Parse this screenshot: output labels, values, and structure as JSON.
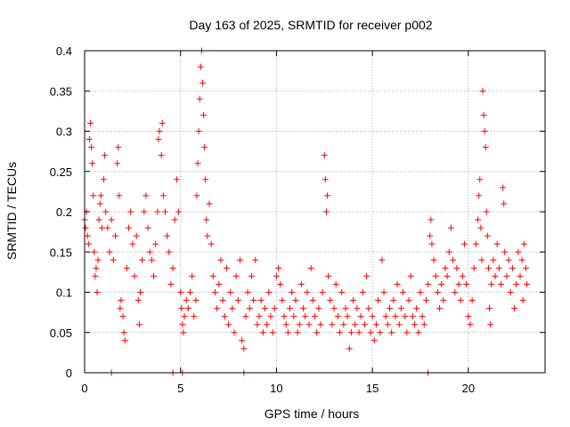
{
  "chart_data": {
    "type": "scatter",
    "title": "Day 163 of 2025, SRMTID for receiver p002",
    "xlabel": "GPS time / hours",
    "ylabel": "SRMTID / TECUs",
    "xlim": [
      0,
      24
    ],
    "ylim": [
      0,
      0.4
    ],
    "xticks": [
      0,
      5,
      10,
      15,
      20
    ],
    "xtick_labels": [
      "0",
      "5",
      "10",
      "15",
      "20"
    ],
    "yticks": [
      0,
      0.05,
      0.1,
      0.15,
      0.2,
      0.25,
      0.3,
      0.35,
      0.4
    ],
    "ytick_labels": [
      "0",
      "0.05",
      "0.1",
      "0.15",
      "0.2",
      "0.25",
      "0.3",
      "0.35",
      "0.4"
    ],
    "grid": true,
    "marker": "+",
    "series": [
      {
        "name": "SRMTID",
        "color": "#ff0000",
        "points": [
          [
            0.0,
            0.19
          ],
          [
            0.05,
            0.18
          ],
          [
            0.1,
            0.2
          ],
          [
            0.15,
            0.17
          ],
          [
            0.2,
            0.16
          ],
          [
            0.25,
            0.29
          ],
          [
            0.3,
            0.31
          ],
          [
            0.35,
            0.28
          ],
          [
            0.4,
            0.26
          ],
          [
            0.45,
            0.22
          ],
          [
            0.5,
            0.15
          ],
          [
            0.55,
            0.12
          ],
          [
            0.6,
            0.13
          ],
          [
            0.65,
            0.1
          ],
          [
            0.7,
            0.14
          ],
          [
            0.75,
            0.19
          ],
          [
            0.8,
            0.21
          ],
          [
            0.85,
            0.22
          ],
          [
            0.9,
            0.18
          ],
          [
            1.0,
            0.24
          ],
          [
            1.05,
            0.27
          ],
          [
            1.1,
            0.2
          ],
          [
            1.2,
            0.18
          ],
          [
            1.3,
            0.15
          ],
          [
            1.4,
            0.19
          ],
          [
            1.5,
            0.14
          ],
          [
            1.6,
            0.17
          ],
          [
            1.7,
            0.26
          ],
          [
            1.75,
            0.28
          ],
          [
            1.8,
            0.22
          ],
          [
            1.85,
            0.08
          ],
          [
            1.9,
            0.09
          ],
          [
            2.0,
            0.07
          ],
          [
            2.05,
            0.05
          ],
          [
            2.1,
            0.04
          ],
          [
            2.2,
            0.13
          ],
          [
            2.3,
            0.18
          ],
          [
            2.4,
            0.2
          ],
          [
            2.5,
            0.16
          ],
          [
            2.6,
            0.12
          ],
          [
            2.7,
            0.17
          ],
          [
            2.8,
            0.09
          ],
          [
            2.85,
            0.06
          ],
          [
            2.9,
            0.1
          ],
          [
            3.0,
            0.14
          ],
          [
            3.1,
            0.2
          ],
          [
            3.2,
            0.22
          ],
          [
            3.3,
            0.18
          ],
          [
            3.4,
            0.15
          ],
          [
            3.5,
            0.14
          ],
          [
            3.6,
            0.12
          ],
          [
            3.7,
            0.16
          ],
          [
            3.8,
            0.2
          ],
          [
            3.85,
            0.29
          ],
          [
            3.9,
            0.3
          ],
          [
            4.0,
            0.27
          ],
          [
            4.05,
            0.31
          ],
          [
            4.1,
            0.22
          ],
          [
            4.2,
            0.2
          ],
          [
            4.3,
            0.17
          ],
          [
            4.4,
            0.15
          ],
          [
            4.5,
            0.11
          ],
          [
            4.6,
            0.13
          ],
          [
            4.7,
            0.19
          ],
          [
            4.8,
            0.24
          ],
          [
            4.9,
            0.2
          ],
          [
            5.0,
            0.1
          ],
          [
            5.05,
            0.08
          ],
          [
            5.1,
            0.06
          ],
          [
            5.15,
            0.05
          ],
          [
            5.2,
            0.07
          ],
          [
            5.3,
            0.09
          ],
          [
            5.4,
            0.08
          ],
          [
            5.5,
            0.1
          ],
          [
            5.6,
            0.12
          ],
          [
            5.7,
            0.07
          ],
          [
            5.8,
            0.09
          ],
          [
            5.85,
            0.22
          ],
          [
            5.9,
            0.26
          ],
          [
            5.95,
            0.3
          ],
          [
            6.0,
            0.34
          ],
          [
            6.05,
            0.38
          ],
          [
            6.1,
            0.4
          ],
          [
            6.15,
            0.36
          ],
          [
            6.2,
            0.32
          ],
          [
            6.25,
            0.28
          ],
          [
            6.3,
            0.24
          ],
          [
            6.35,
            0.19
          ],
          [
            6.4,
            0.17
          ],
          [
            6.5,
            0.21
          ],
          [
            6.6,
            0.16
          ],
          [
            6.7,
            0.12
          ],
          [
            6.8,
            0.1
          ],
          [
            6.9,
            0.08
          ],
          [
            7.0,
            0.11
          ],
          [
            7.1,
            0.14
          ],
          [
            7.2,
            0.09
          ],
          [
            7.3,
            0.07
          ],
          [
            7.4,
            0.13
          ],
          [
            7.5,
            0.06
          ],
          [
            7.6,
            0.1
          ],
          [
            7.7,
            0.08
          ],
          [
            7.8,
            0.05
          ],
          [
            7.9,
            0.12
          ],
          [
            8.0,
            0.09
          ],
          [
            8.1,
            0.14
          ],
          [
            8.2,
            0.04
          ],
          [
            8.3,
            0.03
          ],
          [
            8.4,
            0.07
          ],
          [
            8.5,
            0.1
          ],
          [
            8.6,
            0.08
          ],
          [
            8.7,
            0.12
          ],
          [
            8.8,
            0.09
          ],
          [
            8.9,
            0.14
          ],
          [
            9.0,
            0.06
          ],
          [
            9.1,
            0.07
          ],
          [
            9.2,
            0.09
          ],
          [
            9.3,
            0.05
          ],
          [
            9.4,
            0.08
          ],
          [
            9.5,
            0.06
          ],
          [
            9.6,
            0.1
          ],
          [
            9.7,
            0.07
          ],
          [
            9.8,
            0.05
          ],
          [
            9.9,
            0.08
          ],
          [
            10.0,
            0.12
          ],
          [
            10.1,
            0.13
          ],
          [
            10.2,
            0.11
          ],
          [
            10.3,
            0.09
          ],
          [
            10.4,
            0.07
          ],
          [
            10.5,
            0.06
          ],
          [
            10.6,
            0.05
          ],
          [
            10.7,
            0.08
          ],
          [
            10.8,
            0.1
          ],
          [
            10.9,
            0.07
          ],
          [
            11.0,
            0.09
          ],
          [
            11.1,
            0.05
          ],
          [
            11.2,
            0.06
          ],
          [
            11.3,
            0.11
          ],
          [
            11.4,
            0.08
          ],
          [
            11.5,
            0.07
          ],
          [
            11.6,
            0.1
          ],
          [
            11.7,
            0.06
          ],
          [
            11.8,
            0.13
          ],
          [
            11.9,
            0.09
          ],
          [
            12.0,
            0.07
          ],
          [
            12.1,
            0.05
          ],
          [
            12.2,
            0.08
          ],
          [
            12.3,
            0.06
          ],
          [
            12.4,
            0.1
          ],
          [
            12.5,
            0.27
          ],
          [
            12.55,
            0.24
          ],
          [
            12.6,
            0.2
          ],
          [
            12.65,
            0.22
          ],
          [
            12.7,
            0.12
          ],
          [
            12.8,
            0.09
          ],
          [
            12.9,
            0.06
          ],
          [
            13.0,
            0.08
          ],
          [
            13.1,
            0.11
          ],
          [
            13.2,
            0.07
          ],
          [
            13.3,
            0.05
          ],
          [
            13.4,
            0.1
          ],
          [
            13.5,
            0.06
          ],
          [
            13.6,
            0.08
          ],
          [
            13.7,
            0.07
          ],
          [
            13.8,
            0.03
          ],
          [
            13.9,
            0.05
          ],
          [
            14.0,
            0.09
          ],
          [
            14.1,
            0.06
          ],
          [
            14.2,
            0.08
          ],
          [
            14.3,
            0.05
          ],
          [
            14.4,
            0.07
          ],
          [
            14.5,
            0.1
          ],
          [
            14.6,
            0.06
          ],
          [
            14.7,
            0.12
          ],
          [
            14.8,
            0.08
          ],
          [
            14.9,
            0.05
          ],
          [
            15.0,
            0.07
          ],
          [
            15.1,
            0.04
          ],
          [
            15.2,
            0.06
          ],
          [
            15.3,
            0.09
          ],
          [
            15.4,
            0.05
          ],
          [
            15.5,
            0.14
          ],
          [
            15.6,
            0.1
          ],
          [
            15.7,
            0.07
          ],
          [
            15.8,
            0.06
          ],
          [
            15.9,
            0.08
          ],
          [
            16.0,
            0.05
          ],
          [
            16.1,
            0.09
          ],
          [
            16.2,
            0.07
          ],
          [
            16.3,
            0.11
          ],
          [
            16.4,
            0.06
          ],
          [
            16.5,
            0.08
          ],
          [
            16.6,
            0.1
          ],
          [
            16.7,
            0.07
          ],
          [
            16.8,
            0.05
          ],
          [
            16.9,
            0.09
          ],
          [
            17.0,
            0.12
          ],
          [
            17.1,
            0.07
          ],
          [
            17.2,
            0.06
          ],
          [
            17.3,
            0.08
          ],
          [
            17.4,
            0.05
          ],
          [
            17.5,
            0.1
          ],
          [
            17.6,
            0.07
          ],
          [
            17.7,
            0.06
          ],
          [
            17.8,
            0.09
          ],
          [
            17.9,
            0.11
          ],
          [
            18.0,
            0.17
          ],
          [
            18.05,
            0.19
          ],
          [
            18.1,
            0.16
          ],
          [
            18.2,
            0.14
          ],
          [
            18.3,
            0.12
          ],
          [
            18.4,
            0.1
          ],
          [
            18.5,
            0.08
          ],
          [
            18.6,
            0.11
          ],
          [
            18.7,
            0.09
          ],
          [
            18.8,
            0.13
          ],
          [
            18.9,
            0.12
          ],
          [
            19.0,
            0.15
          ],
          [
            19.1,
            0.18
          ],
          [
            19.2,
            0.14
          ],
          [
            19.3,
            0.1
          ],
          [
            19.4,
            0.13
          ],
          [
            19.5,
            0.11
          ],
          [
            19.6,
            0.09
          ],
          [
            19.7,
            0.12
          ],
          [
            19.8,
            0.16
          ],
          [
            19.9,
            0.11
          ],
          [
            20.0,
            0.07
          ],
          [
            20.1,
            0.06
          ],
          [
            20.2,
            0.09
          ],
          [
            20.3,
            0.13
          ],
          [
            20.4,
            0.16
          ],
          [
            20.5,
            0.19
          ],
          [
            20.55,
            0.22
          ],
          [
            20.6,
            0.24
          ],
          [
            20.65,
            0.18
          ],
          [
            20.7,
            0.14
          ],
          [
            20.75,
            0.35
          ],
          [
            20.8,
            0.32
          ],
          [
            20.85,
            0.3
          ],
          [
            20.9,
            0.28
          ],
          [
            20.95,
            0.2
          ],
          [
            21.0,
            0.17
          ],
          [
            21.05,
            0.13
          ],
          [
            21.1,
            0.08
          ],
          [
            21.15,
            0.06
          ],
          [
            21.2,
            0.11
          ],
          [
            21.3,
            0.14
          ],
          [
            21.4,
            0.12
          ],
          [
            21.5,
            0.16
          ],
          [
            21.6,
            0.13
          ],
          [
            21.7,
            0.11
          ],
          [
            21.8,
            0.23
          ],
          [
            21.85,
            0.21
          ],
          [
            21.9,
            0.15
          ],
          [
            22.0,
            0.12
          ],
          [
            22.1,
            0.14
          ],
          [
            22.2,
            0.1
          ],
          [
            22.3,
            0.13
          ],
          [
            22.4,
            0.08
          ],
          [
            22.5,
            0.11
          ],
          [
            22.6,
            0.15
          ],
          [
            22.7,
            0.12
          ],
          [
            22.8,
            0.14
          ],
          [
            22.85,
            0.09
          ],
          [
            22.9,
            0.16
          ],
          [
            23.0,
            0.13
          ],
          [
            23.05,
            0.11
          ],
          [
            1.4,
            0.0
          ],
          [
            5.1,
            0.0
          ],
          [
            17.9,
            0.0
          ],
          [
            8.3,
            0.0
          ],
          [
            4.6,
            0.0
          ]
        ]
      }
    ]
  }
}
